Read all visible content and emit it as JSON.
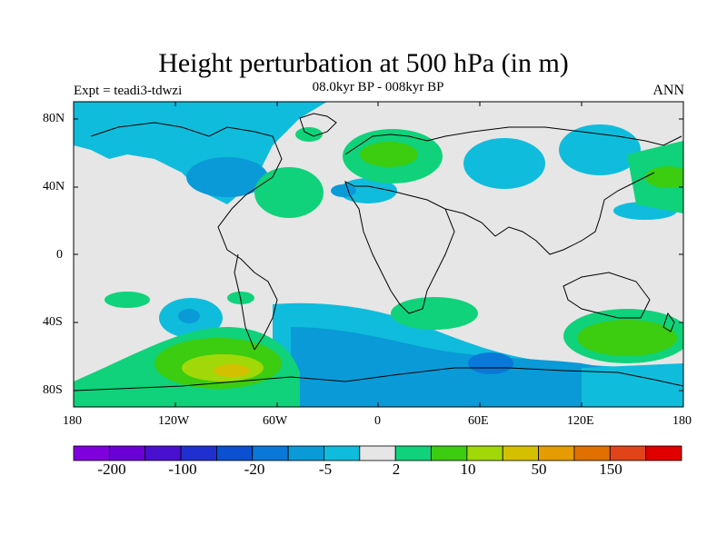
{
  "title": "Height perturbation at 500 hPa (in m)",
  "subtitle": "08.0kyr BP - 008kyr BP",
  "experiment": "Expt = teadi3-tdwzi",
  "season": "ANN",
  "map": {
    "projection": "cylindrical equidistant",
    "lon_range": [
      -180,
      180
    ],
    "lat_range": [
      -90,
      90
    ],
    "lat_tick_labels": [
      "80N",
      "40N",
      "0",
      "40S",
      "80S"
    ],
    "lon_tick_labels": [
      "180",
      "120W",
      "60W",
      "0",
      "60E",
      "120E",
      "180"
    ],
    "coastlines": true
  },
  "colorbar": {
    "labels": [
      "-200",
      "-100",
      "-20",
      "-5",
      "2",
      "10",
      "50",
      "150"
    ],
    "colors": [
      "#7f00dc",
      "#6a00d6",
      "#4a10d0",
      "#2030d0",
      "#0a50d0",
      "#0a78d8",
      "#0a9ad8",
      "#10bcdc",
      "#e6e6e6",
      "#10d27a",
      "#3ccc10",
      "#a0d808",
      "#d4c000",
      "#e49c00",
      "#e07000",
      "#e04418",
      "#e00000"
    ]
  },
  "colors": {
    "background_field": "#e6e6e6",
    "neg_light": "#10bcdc",
    "neg_mid": "#0a9ad8",
    "neg_dark": "#0a78d8",
    "pos_light": "#10d27a",
    "pos_mid": "#3ccc10",
    "pos_high": "#a0d808",
    "pos_higher": "#d4c000"
  }
}
